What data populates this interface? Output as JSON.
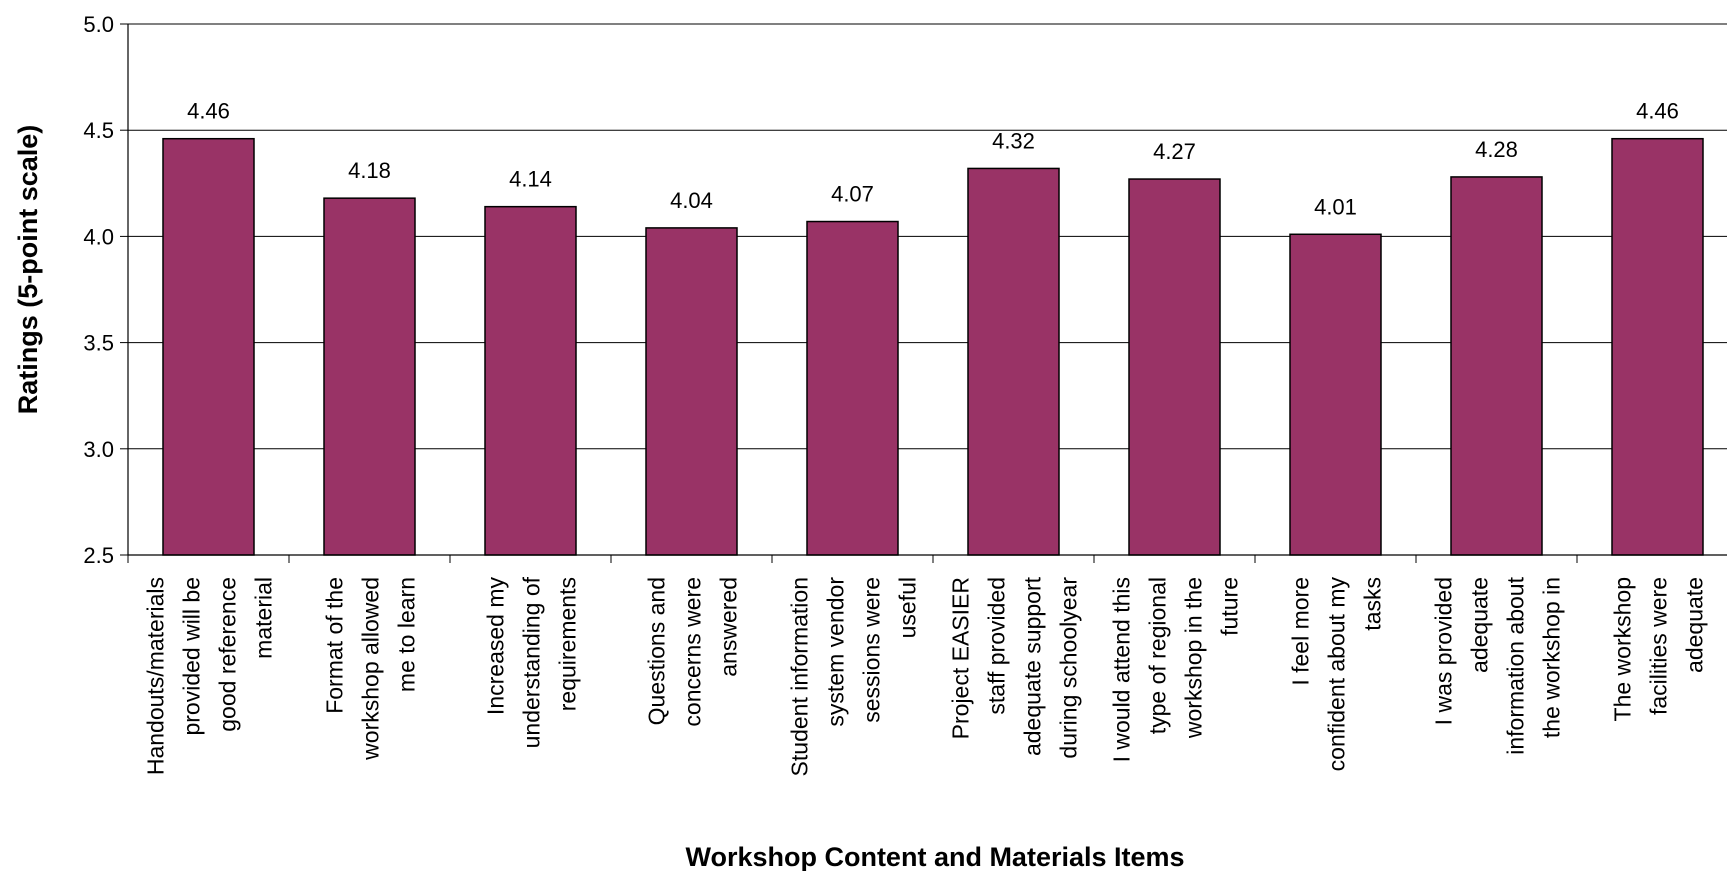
{
  "chart_data": {
    "type": "bar",
    "title": "",
    "xlabel": "Workshop Content and Materials Items",
    "ylabel": "Ratings (5-point scale)",
    "ylim": [
      2.5,
      5.0
    ],
    "yticks": [
      "2.5",
      "3.0",
      "3.5",
      "4.0",
      "4.5",
      "5.0"
    ],
    "grid": true,
    "legend": "none",
    "bar_color": "#993366",
    "categories": [
      [
        "Handouts/materials",
        "provided will be",
        "good reference",
        "material"
      ],
      [
        "Format of the",
        "workshop allowed",
        "me to learn"
      ],
      [
        "Increased my",
        "understanding of",
        "requirements"
      ],
      [
        "Questions and",
        "concerns were",
        "answered"
      ],
      [
        "Student information",
        "system vendor",
        "sessions were",
        "useful"
      ],
      [
        "Project EASIER",
        "staff provided",
        "adequate support",
        "during schoolyear"
      ],
      [
        "I would attend this",
        "type of regional",
        "workshop in the",
        "future"
      ],
      [
        "I feel more",
        "confident about my",
        "tasks"
      ],
      [
        "I was provided",
        "adequate",
        "information about",
        "the workshop in"
      ],
      [
        "The workshop",
        "facilities were",
        "adequate"
      ]
    ],
    "values": [
      4.46,
      4.18,
      4.14,
      4.04,
      4.07,
      4.32,
      4.27,
      4.01,
      4.28,
      4.46
    ],
    "data_labels": [
      "4.46",
      "4.18",
      "4.14",
      "4.04",
      "4.07",
      "4.32",
      "4.27",
      "4.01",
      "4.28",
      "4.46"
    ]
  }
}
